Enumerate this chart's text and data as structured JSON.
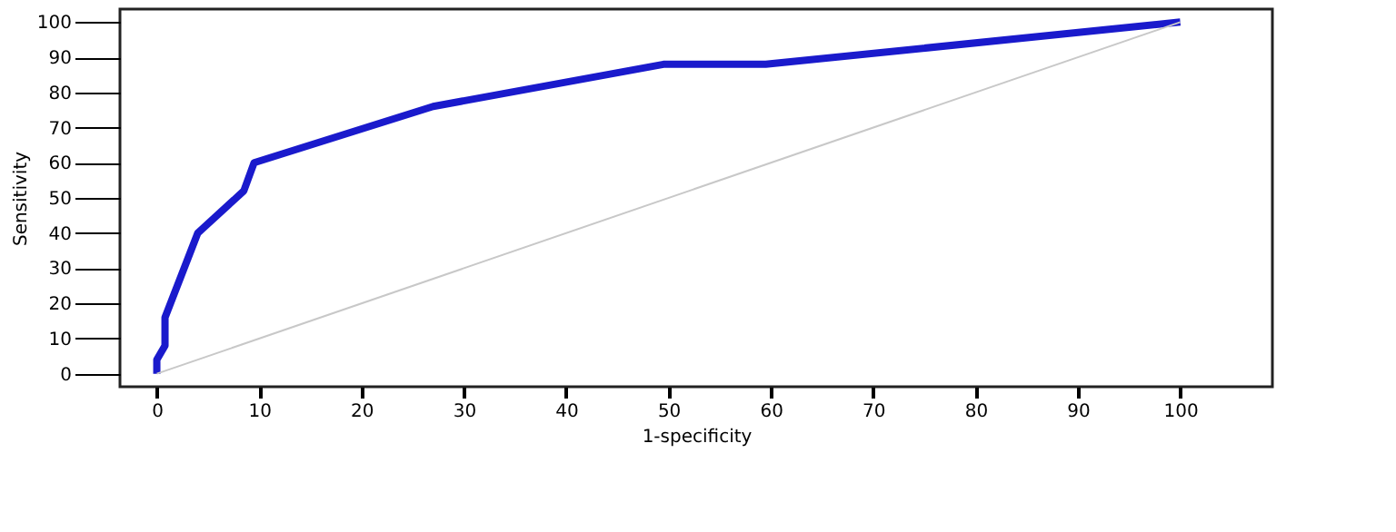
{
  "chart_data": {
    "type": "line",
    "xlabel": "1-specificity",
    "ylabel": "Sensitivity",
    "series": [
      {
        "color": "#1a1acc",
        "x": [
          0,
          0,
          0.8,
          0.8,
          4,
          8.5,
          9.5,
          27,
          49.5,
          59.5,
          100
        ],
        "values": [
          0,
          4,
          8,
          16,
          40,
          52,
          60,
          76,
          88,
          88,
          100
        ]
      },
      {
        "color": "#c8c8c8",
        "x": [
          0,
          100
        ],
        "values": [
          0,
          100
        ]
      }
    ],
    "xlim": [
      -3.6,
      109
    ],
    "ylim": [
      -3.7,
      103.7
    ],
    "xticks": [
      0,
      10,
      20,
      30,
      40,
      50,
      60,
      70,
      80,
      90,
      100
    ],
    "yticks": [
      0,
      10,
      20,
      30,
      40,
      50,
      60,
      70,
      80,
      90,
      100
    ],
    "grid": false,
    "marker": "none",
    "line_style": "solid"
  }
}
